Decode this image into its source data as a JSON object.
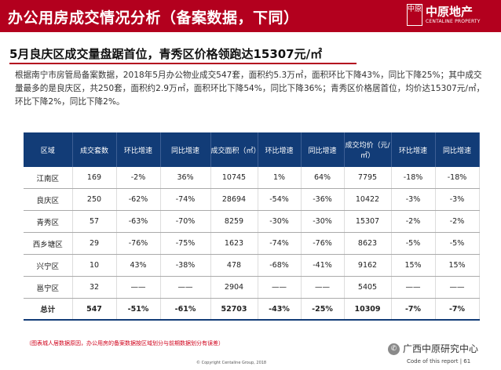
{
  "header": {
    "title": "办公用房成交情况分析（备案数据，下同）",
    "logo_box_text": "中原",
    "logo_cn": "中原地产",
    "logo_en": "CENTALINE PROPERTY"
  },
  "subtitle": "5月良庆区成交量盘踞首位，青秀区价格领跑达15307元/㎡",
  "paragraph": "根据南宁市房管局备案数据，2018年5月办公物业成交547套，面积约5.3万㎡，面积环比下降43%，同比下降25%；其中成交量最多的是良庆区，共250套，面积约2.9万㎡，面积环比下降54%，同比下降36%；青秀区价格居首位，均价达15307元/㎡，环比下降2%，同比下降2%。",
  "table": {
    "headers": [
      "区域",
      "成交套数",
      "环比增速",
      "同比增速",
      "成交面积（㎡）",
      "环比增速",
      "同比增速",
      "成交均价（元/㎡）",
      "环比增速",
      "同比增速"
    ],
    "rows": [
      [
        "江南区",
        "169",
        "-2%",
        "36%",
        "10745",
        "1%",
        "64%",
        "7795",
        "-18%",
        "-18%"
      ],
      [
        "良庆区",
        "250",
        "-62%",
        "-74%",
        "28694",
        "-54%",
        "-36%",
        "10422",
        "-3%",
        "-3%"
      ],
      [
        "青秀区",
        "57",
        "-63%",
        "-70%",
        "8259",
        "-30%",
        "-30%",
        "15307",
        "-2%",
        "-2%"
      ],
      [
        "西乡塘区",
        "29",
        "-76%",
        "-75%",
        "1623",
        "-74%",
        "-76%",
        "8623",
        "-5%",
        "-5%"
      ],
      [
        "兴宁区",
        "10",
        "43%",
        "-38%",
        "478",
        "-68%",
        "-41%",
        "9162",
        "15%",
        "15%"
      ],
      [
        "邕宁区",
        "32",
        "——",
        "——",
        "2904",
        "——",
        "——",
        "5405",
        "——",
        "——"
      ]
    ],
    "total": [
      "总计",
      "547",
      "-51%",
      "-61%",
      "52703",
      "-43%",
      "-25%",
      "10309",
      "-7%",
      "-7%"
    ]
  },
  "note": "（图表城人居数据原因，办公用房的备案数据按区域划分与前期数据划分有误差）",
  "wechat_label": "广西中原研究中心",
  "copyright": "© Copyright Centaline Group, 2018",
  "footer_right": "Code of this report  |  61",
  "colors": {
    "brand_red": "#b3001e",
    "table_header_navy": "#123c77",
    "note_red": "#d0021b"
  }
}
